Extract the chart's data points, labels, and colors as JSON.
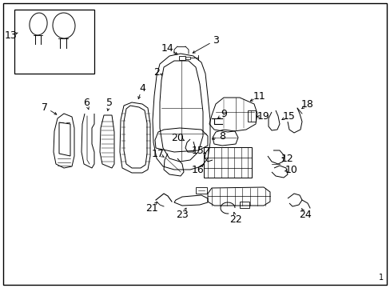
{
  "bg": "#ffffff",
  "lc": "#000000",
  "fig_w": 4.89,
  "fig_h": 3.6,
  "dpi": 100
}
